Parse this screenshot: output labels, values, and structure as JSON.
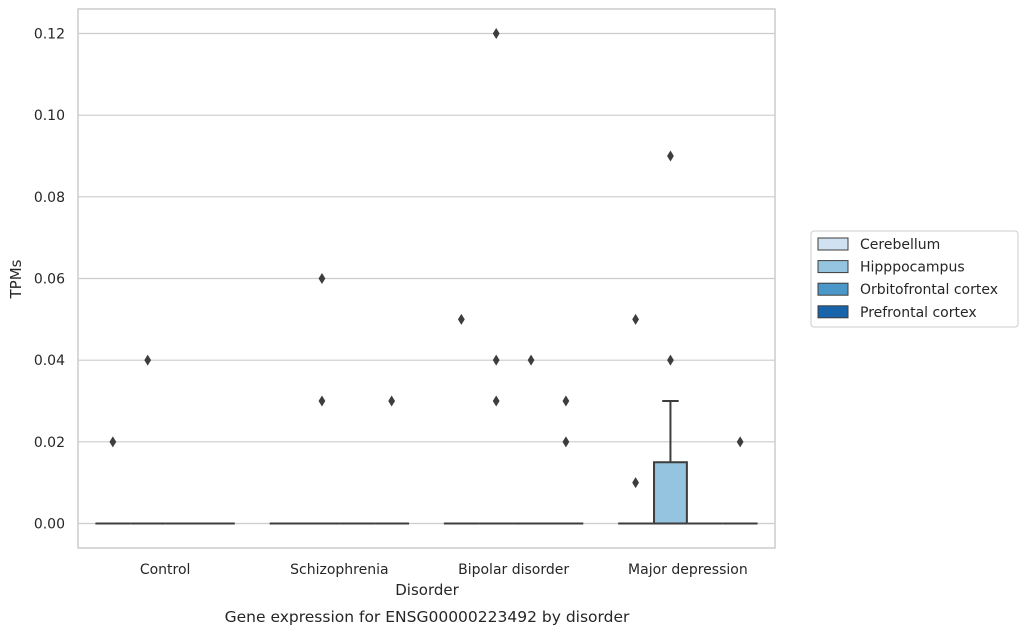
{
  "chart_data": {
    "type": "box",
    "caption": "Gene expression for ENSG00000223492 by disorder",
    "xlabel": "Disorder",
    "ylabel": "TPMs",
    "ylim": [
      -0.006,
      0.126
    ],
    "yticks": [
      0.0,
      0.02,
      0.04,
      0.06,
      0.08,
      0.1,
      0.12
    ],
    "ytick_labels": [
      "0.00",
      "0.02",
      "0.04",
      "0.06",
      "0.08",
      "0.10",
      "0.12"
    ],
    "grid": "horizontal",
    "categories": [
      "Control",
      "Schizophrenia",
      "Bipolar disorder",
      "Major depression"
    ],
    "legend_position": "right",
    "series": [
      {
        "name": "Cerebellum",
        "color": "#d0e1f2",
        "boxes": [
          {
            "q1": 0,
            "median": 0,
            "q3": 0,
            "whisker_low": 0,
            "whisker_high": 0,
            "outliers": [
              0.02
            ]
          },
          {
            "q1": 0,
            "median": 0,
            "q3": 0,
            "whisker_low": 0,
            "whisker_high": 0,
            "outliers": []
          },
          {
            "q1": 0,
            "median": 0,
            "q3": 0,
            "whisker_low": 0,
            "whisker_high": 0,
            "outliers": [
              0.05
            ]
          },
          {
            "q1": 0,
            "median": 0,
            "q3": 0,
            "whisker_low": 0,
            "whisker_high": 0,
            "outliers": [
              0.01,
              0.05
            ]
          }
        ]
      },
      {
        "name": "Hipppocampus",
        "color": "#94c4df",
        "boxes": [
          {
            "q1": 0,
            "median": 0,
            "q3": 0,
            "whisker_low": 0,
            "whisker_high": 0,
            "outliers": [
              0.04
            ]
          },
          {
            "q1": 0,
            "median": 0,
            "q3": 0,
            "whisker_low": 0,
            "whisker_high": 0,
            "outliers": [
              0.03,
              0.06
            ]
          },
          {
            "q1": 0,
            "median": 0,
            "q3": 0,
            "whisker_low": 0,
            "whisker_high": 0,
            "outliers": [
              0.03,
              0.04,
              0.12
            ]
          },
          {
            "q1": 0,
            "median": 0,
            "q3": 0.015,
            "whisker_low": 0,
            "whisker_high": 0.03,
            "outliers": [
              0.04,
              0.09
            ]
          }
        ]
      },
      {
        "name": "Orbitofrontal cortex",
        "color": "#4a98c9",
        "boxes": [
          {
            "q1": 0,
            "median": 0,
            "q3": 0,
            "whisker_low": 0,
            "whisker_high": 0,
            "outliers": []
          },
          {
            "q1": 0,
            "median": 0,
            "q3": 0,
            "whisker_low": 0,
            "whisker_high": 0,
            "outliers": []
          },
          {
            "q1": 0,
            "median": 0,
            "q3": 0,
            "whisker_low": 0,
            "whisker_high": 0,
            "outliers": [
              0.04
            ]
          },
          {
            "q1": 0,
            "median": 0,
            "q3": 0,
            "whisker_low": 0,
            "whisker_high": 0,
            "outliers": []
          }
        ]
      },
      {
        "name": "Prefrontal cortex",
        "color": "#1764ab",
        "boxes": [
          {
            "q1": 0,
            "median": 0,
            "q3": 0,
            "whisker_low": 0,
            "whisker_high": 0,
            "outliers": []
          },
          {
            "q1": 0,
            "median": 0,
            "q3": 0,
            "whisker_low": 0,
            "whisker_high": 0,
            "outliers": [
              0.03
            ]
          },
          {
            "q1": 0,
            "median": 0,
            "q3": 0,
            "whisker_low": 0,
            "whisker_high": 0,
            "outliers": [
              0.02,
              0.03
            ]
          },
          {
            "q1": 0,
            "median": 0,
            "q3": 0,
            "whisker_low": 0,
            "whisker_high": 0,
            "outliers": [
              0.02
            ]
          }
        ]
      }
    ]
  }
}
